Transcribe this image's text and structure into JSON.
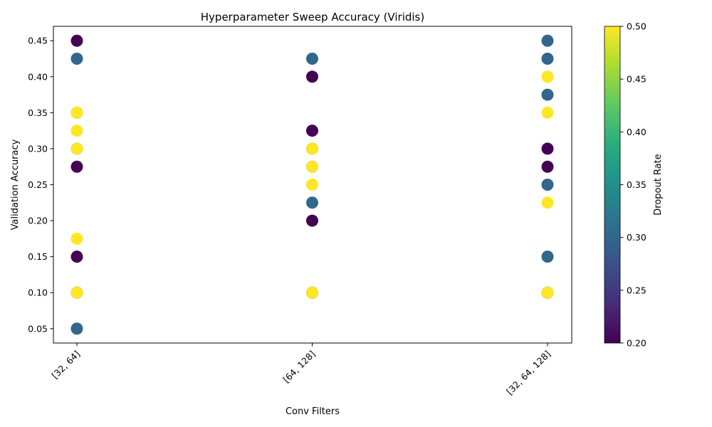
{
  "chart_data": {
    "type": "scatter",
    "title": "Hyperparameter Sweep Accuracy (Viridis)",
    "xlabel": "Conv Filters",
    "ylabel": "Validation Accuracy",
    "categories": [
      "[32, 64]",
      "[64, 128]",
      "[32, 64, 128]"
    ],
    "ylim": [
      0.03,
      0.47
    ],
    "yticks": [
      0.05,
      0.1,
      0.15,
      0.2,
      0.25,
      0.3,
      0.35,
      0.4,
      0.45
    ],
    "yticklabels": [
      "0.05",
      "0.10",
      "0.15",
      "0.20",
      "0.25",
      "0.30",
      "0.35",
      "0.40",
      "0.45"
    ],
    "colorbar": {
      "label": "Dropout Rate",
      "colormap": "viridis",
      "range": [
        0.2,
        0.5
      ],
      "ticks": [
        "0.20",
        "0.25",
        "0.30",
        "0.35",
        "0.40",
        "0.45",
        "0.50"
      ]
    },
    "grid": false,
    "points": [
      {
        "x": "[32, 64]",
        "y": 0.45,
        "dropout": 0.2
      },
      {
        "x": "[32, 64]",
        "y": 0.425,
        "dropout": 0.3
      },
      {
        "x": "[32, 64]",
        "y": 0.35,
        "dropout": 0.3
      },
      {
        "x": "[32, 64]",
        "y": 0.35,
        "dropout": 0.5
      },
      {
        "x": "[32, 64]",
        "y": 0.325,
        "dropout": 0.5
      },
      {
        "x": "[32, 64]",
        "y": 0.3,
        "dropout": 0.3
      },
      {
        "x": "[32, 64]",
        "y": 0.3,
        "dropout": 0.5
      },
      {
        "x": "[32, 64]",
        "y": 0.275,
        "dropout": 0.2
      },
      {
        "x": "[32, 64]",
        "y": 0.175,
        "dropout": 0.5
      },
      {
        "x": "[32, 64]",
        "y": 0.15,
        "dropout": 0.2
      },
      {
        "x": "[32, 64]",
        "y": 0.1,
        "dropout": 0.2
      },
      {
        "x": "[32, 64]",
        "y": 0.1,
        "dropout": 0.3
      },
      {
        "x": "[32, 64]",
        "y": 0.1,
        "dropout": 0.5
      },
      {
        "x": "[32, 64]",
        "y": 0.05,
        "dropout": 0.3
      },
      {
        "x": "[64, 128]",
        "y": 0.425,
        "dropout": 0.3
      },
      {
        "x": "[64, 128]",
        "y": 0.4,
        "dropout": 0.2
      },
      {
        "x": "[64, 128]",
        "y": 0.325,
        "dropout": 0.2
      },
      {
        "x": "[64, 128]",
        "y": 0.3,
        "dropout": 0.3
      },
      {
        "x": "[64, 128]",
        "y": 0.3,
        "dropout": 0.5
      },
      {
        "x": "[64, 128]",
        "y": 0.275,
        "dropout": 0.3
      },
      {
        "x": "[64, 128]",
        "y": 0.275,
        "dropout": 0.5
      },
      {
        "x": "[64, 128]",
        "y": 0.25,
        "dropout": 0.5
      },
      {
        "x": "[64, 128]",
        "y": 0.225,
        "dropout": 0.3
      },
      {
        "x": "[64, 128]",
        "y": 0.2,
        "dropout": 0.2
      },
      {
        "x": "[64, 128]",
        "y": 0.1,
        "dropout": 0.2
      },
      {
        "x": "[64, 128]",
        "y": 0.1,
        "dropout": 0.3
      },
      {
        "x": "[64, 128]",
        "y": 0.1,
        "dropout": 0.5
      },
      {
        "x": "[32, 64, 128]",
        "y": 0.45,
        "dropout": 0.3
      },
      {
        "x": "[32, 64, 128]",
        "y": 0.425,
        "dropout": 0.3
      },
      {
        "x": "[32, 64, 128]",
        "y": 0.4,
        "dropout": 0.5
      },
      {
        "x": "[32, 64, 128]",
        "y": 0.375,
        "dropout": 0.3
      },
      {
        "x": "[32, 64, 128]",
        "y": 0.35,
        "dropout": 0.5
      },
      {
        "x": "[32, 64, 128]",
        "y": 0.3,
        "dropout": 0.2
      },
      {
        "x": "[32, 64, 128]",
        "y": 0.275,
        "dropout": 0.2
      },
      {
        "x": "[32, 64, 128]",
        "y": 0.25,
        "dropout": 0.3
      },
      {
        "x": "[32, 64, 128]",
        "y": 0.225,
        "dropout": 0.5
      },
      {
        "x": "[32, 64, 128]",
        "y": 0.15,
        "dropout": 0.3
      },
      {
        "x": "[32, 64, 128]",
        "y": 0.1,
        "dropout": 0.2
      },
      {
        "x": "[32, 64, 128]",
        "y": 0.1,
        "dropout": 0.3
      },
      {
        "x": "[32, 64, 128]",
        "y": 0.1,
        "dropout": 0.5
      }
    ]
  }
}
